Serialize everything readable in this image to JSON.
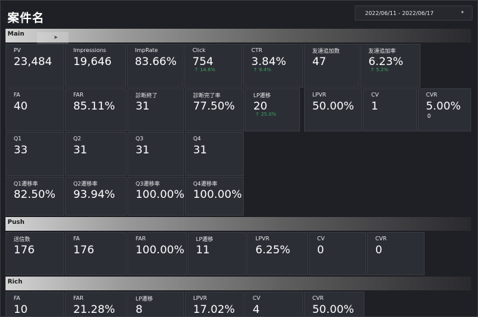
{
  "header": {
    "title": "案件名",
    "date_range": "2022/06/11 - 2022/06/17"
  },
  "sections": {
    "main": {
      "label": "Main",
      "rows": [
        [
          {
            "label": "PV",
            "value": "23,484"
          },
          {
            "label": "Impressions",
            "value": "19,646"
          },
          {
            "label": "ImpRate",
            "value": "83.66%"
          },
          {
            "label": "Click",
            "value": "754",
            "delta": "↑ 14.6%"
          },
          {
            "label": "CTR",
            "value": "3.84%",
            "delta": "↑ 9.4%"
          },
          {
            "label": "友達追加数",
            "value": "47"
          },
          {
            "label": "友達追加率",
            "value": "6.23%",
            "delta": "↑ 5.2%"
          }
        ],
        [
          {
            "label": "FA",
            "value": "40"
          },
          {
            "label": "FAR",
            "value": "85.11%"
          },
          {
            "label": "診断終了",
            "value": "31"
          },
          {
            "label": "診断完了率",
            "value": "77.50%"
          },
          {
            "label": "LP遷移",
            "value": "20",
            "delta": "↑ 25.0%"
          },
          {
            "label": "LPVR",
            "value": "50.00%"
          },
          {
            "label": "CV",
            "value": "1"
          },
          {
            "label": "CVR",
            "value": "5.00%",
            "sub": "0"
          }
        ],
        [
          {
            "label": "Q1",
            "value": "33"
          },
          {
            "label": "Q2",
            "value": "31"
          },
          {
            "label": "Q3",
            "value": "31"
          },
          {
            "label": "Q4",
            "value": "31"
          }
        ],
        [
          {
            "label": "Q1遷移率",
            "value": "82.50%"
          },
          {
            "label": "Q2遷移率",
            "value": "93.94%"
          },
          {
            "label": "Q3遷移率",
            "value": "100.00%"
          },
          {
            "label": "Q4遷移率",
            "value": "100.00%"
          }
        ]
      ]
    },
    "push": {
      "label": "Push",
      "rows": [
        [
          {
            "label": "送信数",
            "value": "176"
          },
          {
            "label": "FA",
            "value": "176"
          },
          {
            "label": "FAR",
            "value": "100.00%"
          },
          {
            "label": "LP遷移",
            "value": "11"
          },
          {
            "label": "LPVR",
            "value": "6.25%"
          },
          {
            "label": "CV",
            "value": "0"
          },
          {
            "label": "CVR",
            "value": "0"
          }
        ]
      ]
    },
    "rich": {
      "label": "Rich",
      "rows": [
        [
          {
            "label": "FA",
            "value": "10"
          },
          {
            "label": "FAR",
            "value": "21.28%"
          },
          {
            "label": "LP遷移",
            "value": "8"
          },
          {
            "label": "LPVR",
            "value": "17.02%"
          },
          {
            "label": "CV",
            "value": "4"
          },
          {
            "label": "CVR",
            "value": "50.00%"
          }
        ]
      ]
    }
  }
}
